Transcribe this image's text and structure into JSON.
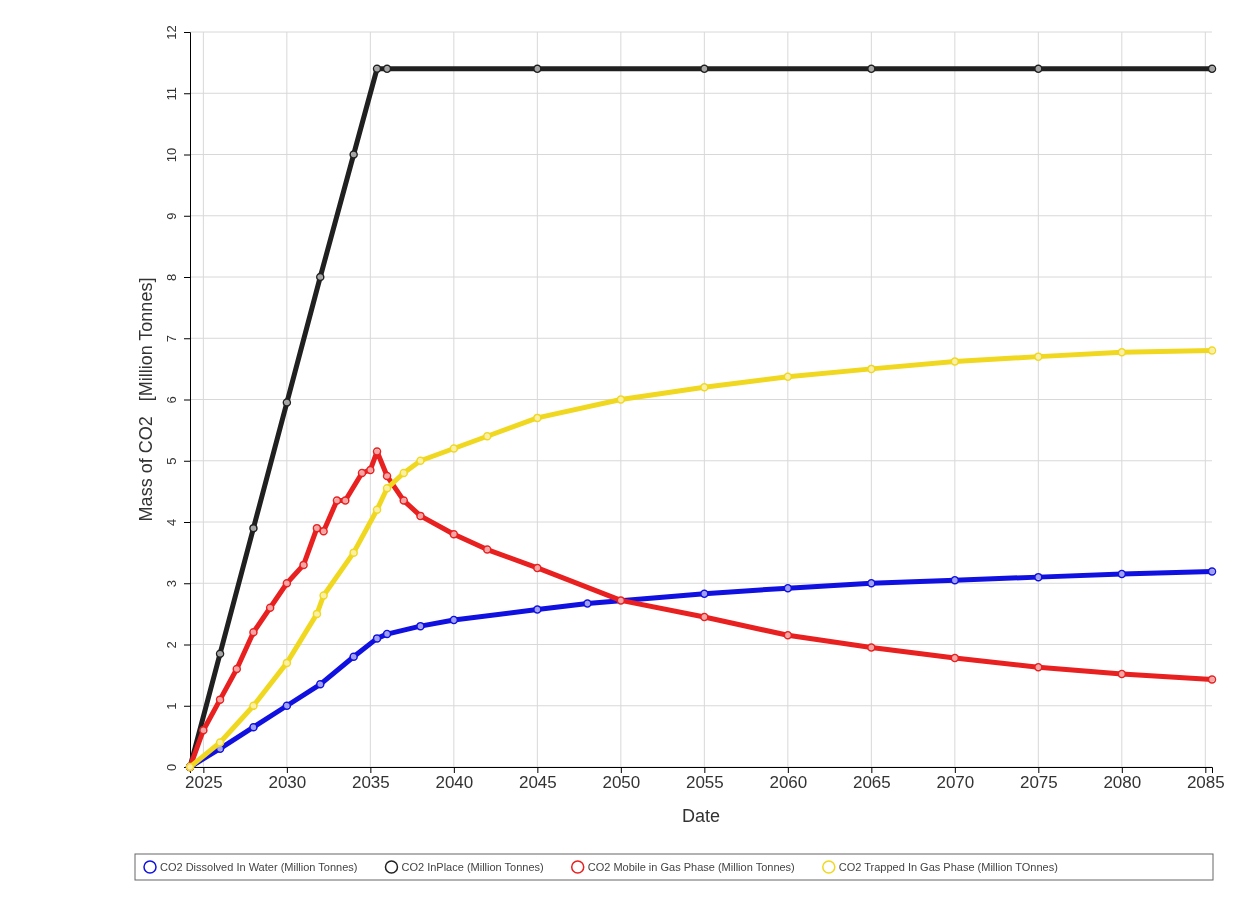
{
  "chart_data": {
    "type": "line",
    "xlabel": "Date",
    "ylabel": "Mass of CO2   [Million Tonnes]",
    "xlim": [
      2024.2,
      2085.4
    ],
    "xticks": [
      2025,
      2030,
      2035,
      2040,
      2045,
      2050,
      2055,
      2060,
      2065,
      2070,
      2075,
      2080,
      2085
    ],
    "ylim": [
      0,
      12
    ],
    "yticks": [
      0,
      1,
      2,
      3,
      4,
      5,
      6,
      7,
      8,
      9,
      10,
      11,
      12
    ],
    "grid": true,
    "legend": "bottom",
    "marker": "circle",
    "line_style": "solid",
    "series": [
      {
        "name": "CO2 Dissolved In Water (Million Tonnes)",
        "color": "#1010e0",
        "x": [
          2024.2,
          2026,
          2028,
          2030,
          2032,
          2034,
          2035.4,
          2036,
          2038,
          2040,
          2045,
          2048,
          2055,
          2060,
          2065,
          2070,
          2075,
          2080,
          2085.4
        ],
        "values": [
          0,
          0.3,
          0.65,
          1.0,
          1.35,
          1.8,
          2.1,
          2.17,
          2.3,
          2.4,
          2.57,
          2.67,
          2.83,
          2.92,
          3.0,
          3.05,
          3.1,
          3.15,
          3.19
        ]
      },
      {
        "name": "CO2 InPlace (Million Tonnes)",
        "color": "#202020",
        "x": [
          2024.2,
          2026,
          2028,
          2030,
          2032,
          2034,
          2035.4,
          2036,
          2045,
          2055,
          2065,
          2075,
          2085.4
        ],
        "values": [
          0,
          1.85,
          3.9,
          5.95,
          8.0,
          10.0,
          11.4,
          11.4,
          11.4,
          11.4,
          11.4,
          11.4,
          11.4
        ]
      },
      {
        "name": "CO2 Mobile in Gas Phase (Million Tonnes)",
        "color": "#e82020",
        "x": [
          2024.2,
          2025,
          2026,
          2027,
          2028,
          2029,
          2030,
          2031,
          2031.8,
          2032.2,
          2033,
          2033.5,
          2034.5,
          2035,
          2035.4,
          2036,
          2037,
          2038,
          2040,
          2042,
          2045,
          2050,
          2055,
          2060,
          2065,
          2070,
          2075,
          2080,
          2085.4
        ],
        "values": [
          0,
          0.6,
          1.1,
          1.6,
          2.2,
          2.6,
          3.0,
          3.3,
          3.9,
          3.85,
          4.35,
          4.35,
          4.8,
          4.85,
          5.15,
          4.75,
          4.35,
          4.1,
          3.8,
          3.55,
          3.25,
          2.72,
          2.45,
          2.15,
          1.95,
          1.78,
          1.63,
          1.52,
          1.43
        ]
      },
      {
        "name": "CO2 Trapped In Gas Phase (Million TOnnes)",
        "color": "#f0d820",
        "x": [
          2024.2,
          2026,
          2028,
          2030,
          2031.8,
          2032.2,
          2034,
          2035.4,
          2036,
          2037,
          2038,
          2040,
          2042,
          2045,
          2050,
          2055,
          2060,
          2065,
          2070,
          2075,
          2080,
          2085.4
        ],
        "values": [
          0,
          0.4,
          1.0,
          1.7,
          2.5,
          2.8,
          3.5,
          4.2,
          4.55,
          4.8,
          5.0,
          5.2,
          5.4,
          5.7,
          6.0,
          6.2,
          6.37,
          6.5,
          6.62,
          6.7,
          6.77,
          6.8
        ]
      }
    ]
  }
}
